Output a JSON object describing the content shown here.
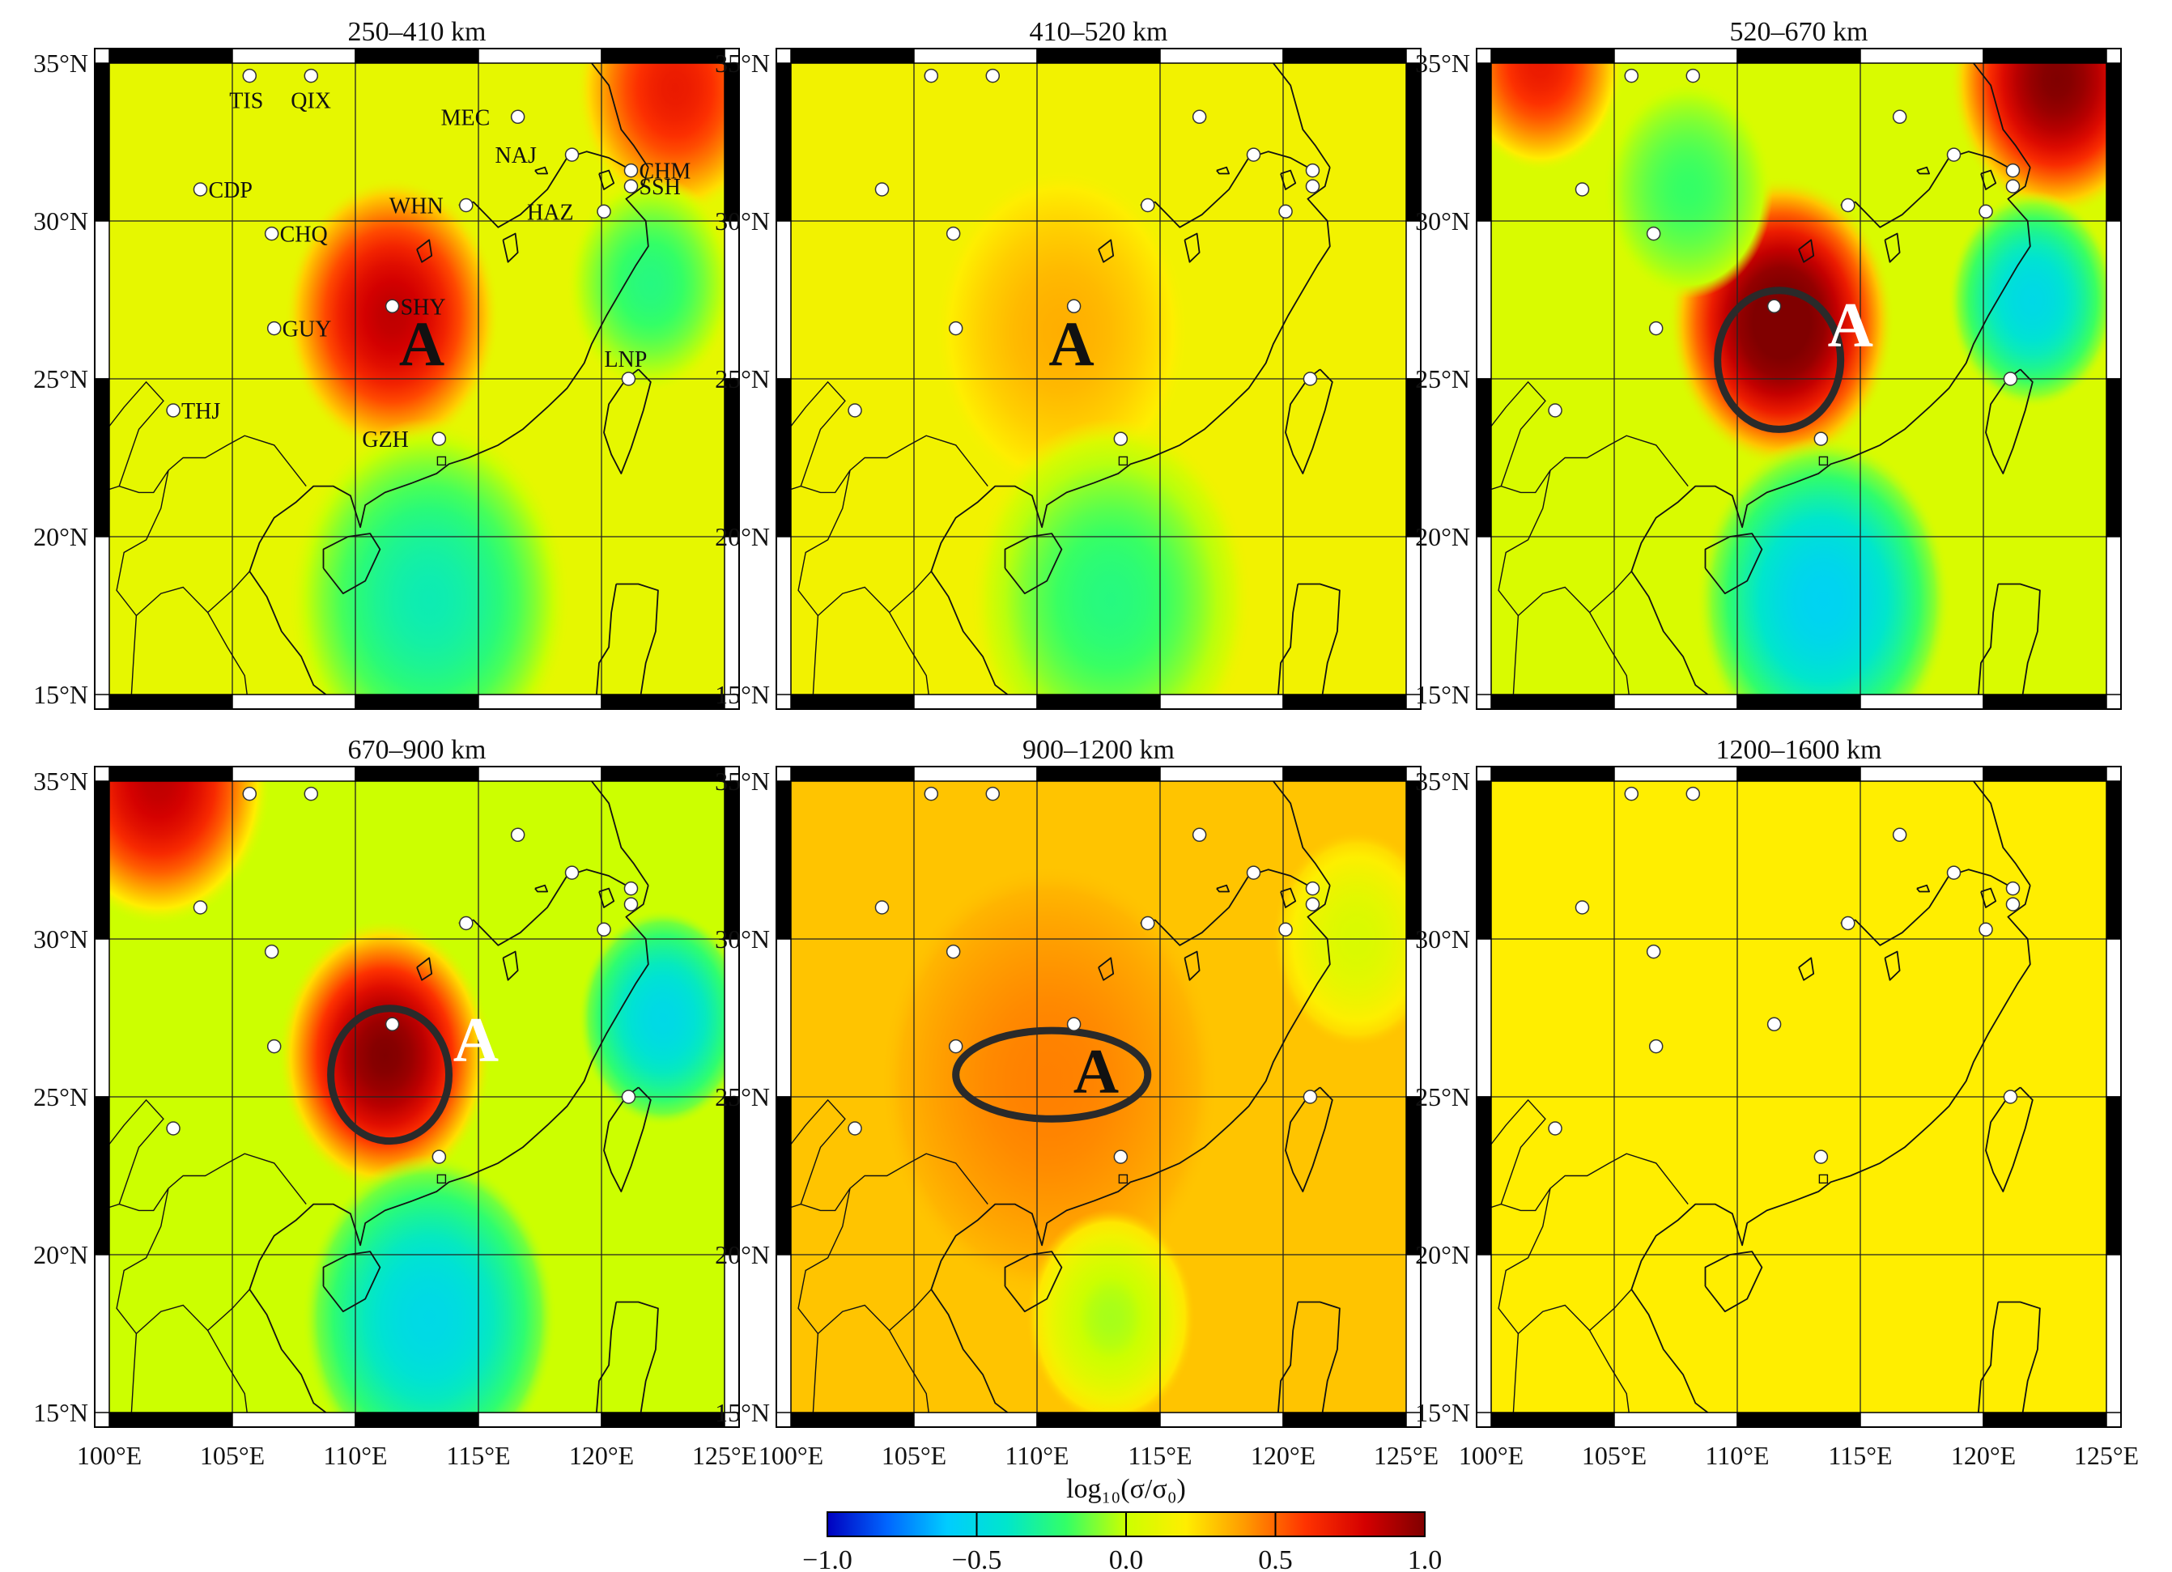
{
  "lon_ticks": [
    "100°E",
    "105°E",
    "110°E",
    "115°E",
    "120°E",
    "125°E"
  ],
  "lat_ticks": [
    "35°N",
    "30°N",
    "25°N",
    "20°N",
    "15°N"
  ],
  "panels": [
    {
      "title": "250–410 km",
      "show_labels": true,
      "anomaly": {
        "label": "A",
        "color": "#111111",
        "lon": 112.7,
        "lat": 25.9
      },
      "contour": null,
      "blobs": [
        {
          "lon": 111.5,
          "lat": 27,
          "r": 3.8,
          "v": 0.85
        },
        {
          "lon": 123,
          "lat": 34.2,
          "r": 3.5,
          "v": 0.7
        },
        {
          "lon": 113,
          "lat": 18,
          "r": 5,
          "v": -0.35
        },
        {
          "lon": 122,
          "lat": 28,
          "r": 3,
          "v": -0.25
        }
      ]
    },
    {
      "title": "410–520 km",
      "show_labels": false,
      "anomaly": {
        "label": "A",
        "color": "#111111",
        "lon": 111.4,
        "lat": 25.9
      },
      "contour": null,
      "blobs": [
        {
          "lon": 111,
          "lat": 26.5,
          "r": 4.5,
          "v": 0.35
        },
        {
          "lon": 113,
          "lat": 18,
          "r": 5,
          "v": -0.25
        }
      ]
    },
    {
      "title": "520–670 km",
      "show_labels": false,
      "anomaly": {
        "label": "A",
        "color": "#ffffff",
        "lon": 114.6,
        "lat": 26.5
      },
      "contour": {
        "lon": 111.7,
        "lat": 25.6,
        "rx": 2.5,
        "ry": 2.2
      },
      "blobs": [
        {
          "lon": 111.8,
          "lat": 26.8,
          "r": 4,
          "v": 1.1
        },
        {
          "lon": 123,
          "lat": 34.5,
          "r": 3.8,
          "v": 1.0
        },
        {
          "lon": 102,
          "lat": 35,
          "r": 3,
          "v": 0.7
        },
        {
          "lon": 113.5,
          "lat": 18,
          "r": 4.5,
          "v": -0.55
        },
        {
          "lon": 122,
          "lat": 27.5,
          "r": 3,
          "v": -0.5
        },
        {
          "lon": 108,
          "lat": 31,
          "r": 3,
          "v": -0.2
        }
      ]
    },
    {
      "title": "670–900 km",
      "show_labels": false,
      "anomaly": {
        "label": "A",
        "color": "#ffffff",
        "lon": 114.9,
        "lat": 26.6
      },
      "contour": {
        "lon": 111.4,
        "lat": 25.7,
        "rx": 2.4,
        "ry": 2.1
      },
      "blobs": [
        {
          "lon": 111.2,
          "lat": 26.3,
          "r": 3.8,
          "v": 1.0
        },
        {
          "lon": 102,
          "lat": 35,
          "r": 4,
          "v": 0.85
        },
        {
          "lon": 113,
          "lat": 18,
          "r": 4.5,
          "v": -0.5
        },
        {
          "lon": 122.5,
          "lat": 27.5,
          "r": 3,
          "v": -0.5
        }
      ]
    },
    {
      "title": "900–1200 km",
      "show_labels": false,
      "anomaly": {
        "label": "A",
        "color": "#111111",
        "lon": 112.4,
        "lat": 25.6
      },
      "contour": {
        "lon": 110.6,
        "lat": 25.7,
        "rx": 3.9,
        "ry": 1.4
      },
      "blobs": [
        {
          "lon": 110.5,
          "lat": 25.5,
          "r": 6,
          "v": 0.45
        },
        {
          "lon": 113,
          "lat": 18,
          "r": 3,
          "v": -0.05
        },
        {
          "lon": 123,
          "lat": 30,
          "r": 3,
          "v": 0.05
        }
      ]
    },
    {
      "title": "1200–1600 km",
      "show_labels": false,
      "anomaly": null,
      "contour": null,
      "blobs": []
    }
  ],
  "panel_base": [
    0.1,
    0.15,
    0.05,
    0.0,
    0.3,
    0.2
  ],
  "stations": [
    {
      "name": "TIS",
      "lon": 105.7,
      "lat": 34.6
    },
    {
      "name": "QIX",
      "lon": 108.2,
      "lat": 34.6
    },
    {
      "name": "MEC",
      "lon": 116.6,
      "lat": 33.3
    },
    {
      "name": "NAJ",
      "lon": 118.8,
      "lat": 32.1
    },
    {
      "name": "CHM",
      "lon": 121.2,
      "lat": 31.6
    },
    {
      "name": "SSH",
      "lon": 121.2,
      "lat": 31.1
    },
    {
      "name": "CDP",
      "lon": 103.7,
      "lat": 31.0
    },
    {
      "name": "WHN",
      "lon": 114.5,
      "lat": 30.5
    },
    {
      "name": "HAZ",
      "lon": 120.1,
      "lat": 30.3
    },
    {
      "name": "CHQ",
      "lon": 106.6,
      "lat": 29.6
    },
    {
      "name": "SHY",
      "lon": 111.5,
      "lat": 27.3
    },
    {
      "name": "GUY",
      "lon": 106.7,
      "lat": 26.6
    },
    {
      "name": "LNP",
      "lon": 121.1,
      "lat": 25.0
    },
    {
      "name": "THJ",
      "lon": 102.6,
      "lat": 24.0
    },
    {
      "name": "GZH",
      "lon": 113.4,
      "lat": 23.1
    }
  ],
  "colorbar": {
    "label": "log₁₀(σ/σ₀)",
    "min": -1.0,
    "max": 1.0,
    "ticks": [
      "−1.0",
      "−0.5",
      "0.0",
      "0.5",
      "1.0"
    ],
    "colormap": [
      "#0000bf",
      "#0066ff",
      "#00ccff",
      "#00e6cc",
      "#33ff66",
      "#ccff00",
      "#ffee00",
      "#ff9900",
      "#ff3300",
      "#d40000",
      "#800000"
    ]
  }
}
